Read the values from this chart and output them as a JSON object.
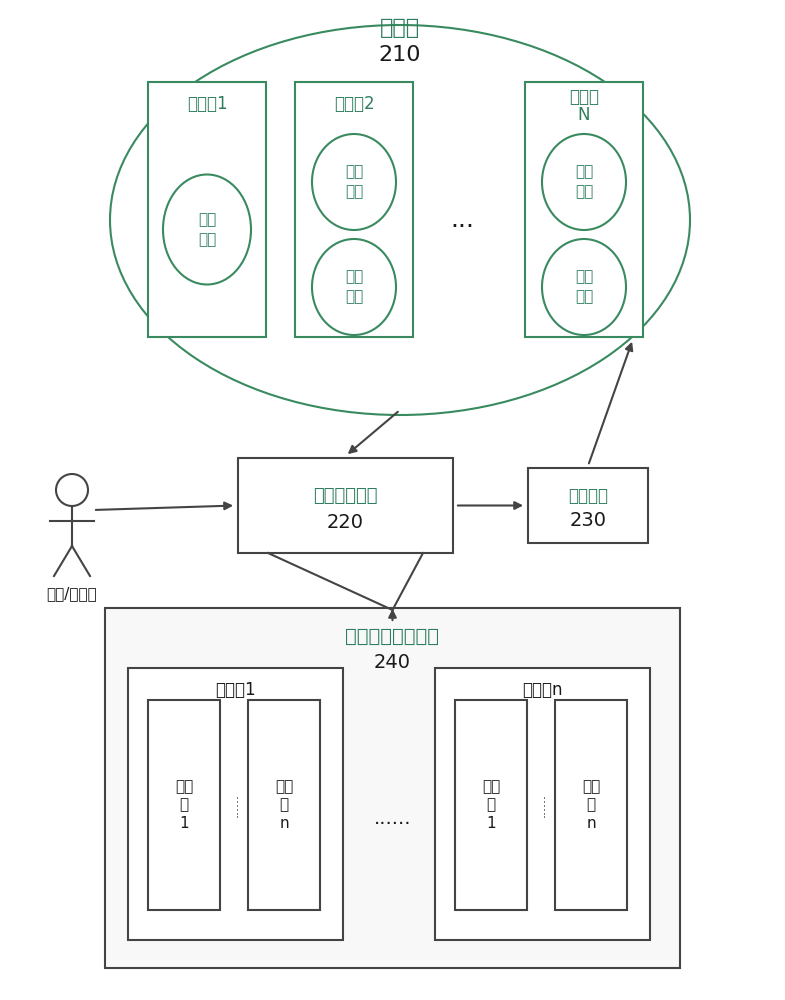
{
  "bg_color": "#ffffff",
  "gc": "#2e7d5e",
  "bk": "#1a1a1a",
  "gb": "#3a8a60",
  "bb": "#444444",
  "cloud_label": "云应用",
  "cloud_number": "210",
  "pg1_label": "进程组1",
  "pg2_label": "进程组2",
  "pgN_line1": "进程组",
  "pgN_line2": "N",
  "ctrl_label": "控制\n进程",
  "work_label": "工作\n进程",
  "dots3": "...",
  "dots6": "......",
  "res_label": "资源调度装置",
  "res_number": "220",
  "mon_label": "监控装置",
  "mon_number": "230",
  "virt_label": "虚拟资源管理平台",
  "virt_number": "240",
  "pm1_label": "物理机1",
  "pmn_label": "物理机n",
  "vm1_label": "虚拟\n机\n1",
  "vmn_label": "虚拟\n机\nn",
  "user_label": "用户/管理员"
}
